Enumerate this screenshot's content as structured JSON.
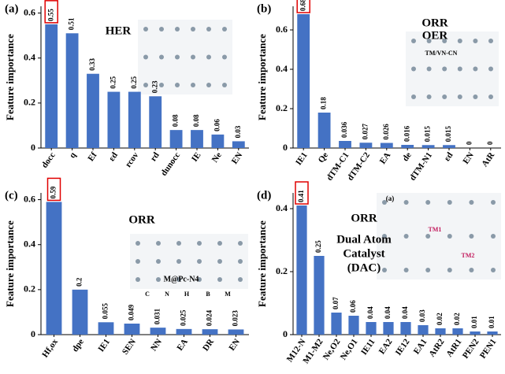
{
  "chart_data": [
    {
      "type": "bar",
      "panel": "(a)",
      "title": "HER",
      "ylabel": "Feature importance",
      "color": "#4472c4",
      "categories": [
        "docc",
        "q",
        "Ef",
        "εd",
        "rcov",
        "rd",
        "dunocc",
        "IE",
        "Ne",
        "EN"
      ],
      "values": [
        0.55,
        0.51,
        0.33,
        0.25,
        0.25,
        0.23,
        0.08,
        0.08,
        0.06,
        0.03
      ],
      "ylim": [
        0,
        0.63
      ],
      "yticks": [
        0,
        0.2,
        0.4,
        0.6
      ],
      "highlight": 0,
      "annotations": []
    },
    {
      "type": "bar",
      "panel": "(b)",
      "title": "ORR",
      "ylabel": "Feature importance",
      "color": "#4472c4",
      "categories": [
        "IE1",
        "Qe",
        "dTM-C1",
        "dTM-C2",
        "EA",
        "de",
        "dTM-N1",
        "εd",
        "EN",
        "AtR"
      ],
      "values": [
        0.68,
        0.18,
        0.036,
        0.027,
        0.026,
        0.016,
        0.015,
        0.015,
        0,
        0
      ],
      "ylim": [
        0,
        0.72
      ],
      "yticks": [
        0,
        0.2,
        0.4,
        0.6
      ],
      "highlight": 0,
      "annotations": [
        "OER",
        "TM/VN-CN"
      ]
    },
    {
      "type": "bar",
      "panel": "(c)",
      "title": "ORR",
      "ylabel": "Feature importance",
      "color": "#4472c4",
      "categories": [
        "Hf,ox",
        "dpe",
        "IE1",
        "SEN",
        "NN",
        "EA",
        "DR",
        "EN"
      ],
      "values": [
        0.59,
        0.2,
        0.055,
        0.049,
        0.031,
        0.025,
        0.024,
        0.023
      ],
      "ylim": [
        0,
        0.63
      ],
      "yticks": [
        0,
        0.2,
        0.4,
        0.6
      ],
      "highlight": 0,
      "annotations": [
        "M@Pc-N4",
        "C",
        "N",
        "H",
        "B",
        "M"
      ]
    },
    {
      "type": "bar",
      "panel": "(d)",
      "title": "ORR",
      "ylabel": "Feature importance",
      "color": "#4472c4",
      "categories": [
        "M12-N",
        "M1-M2",
        "Ne,O2",
        "Ne,O1",
        "IE11",
        "EA2",
        "IE12",
        "EA1",
        "AtR2",
        "AtR1",
        "PEN2",
        "PEN1"
      ],
      "values": [
        0.41,
        0.25,
        0.07,
        0.06,
        0.04,
        0.04,
        0.04,
        0.03,
        0.02,
        0.02,
        0.01,
        0.01
      ],
      "ylim": [
        0,
        0.45
      ],
      "yticks": [
        0,
        0.2,
        0.4
      ],
      "highlight": 0,
      "annotations": [
        "Dual Atom",
        "Catalyst",
        "(DAC)",
        "(a)",
        "TM1",
        "TM2"
      ]
    }
  ]
}
